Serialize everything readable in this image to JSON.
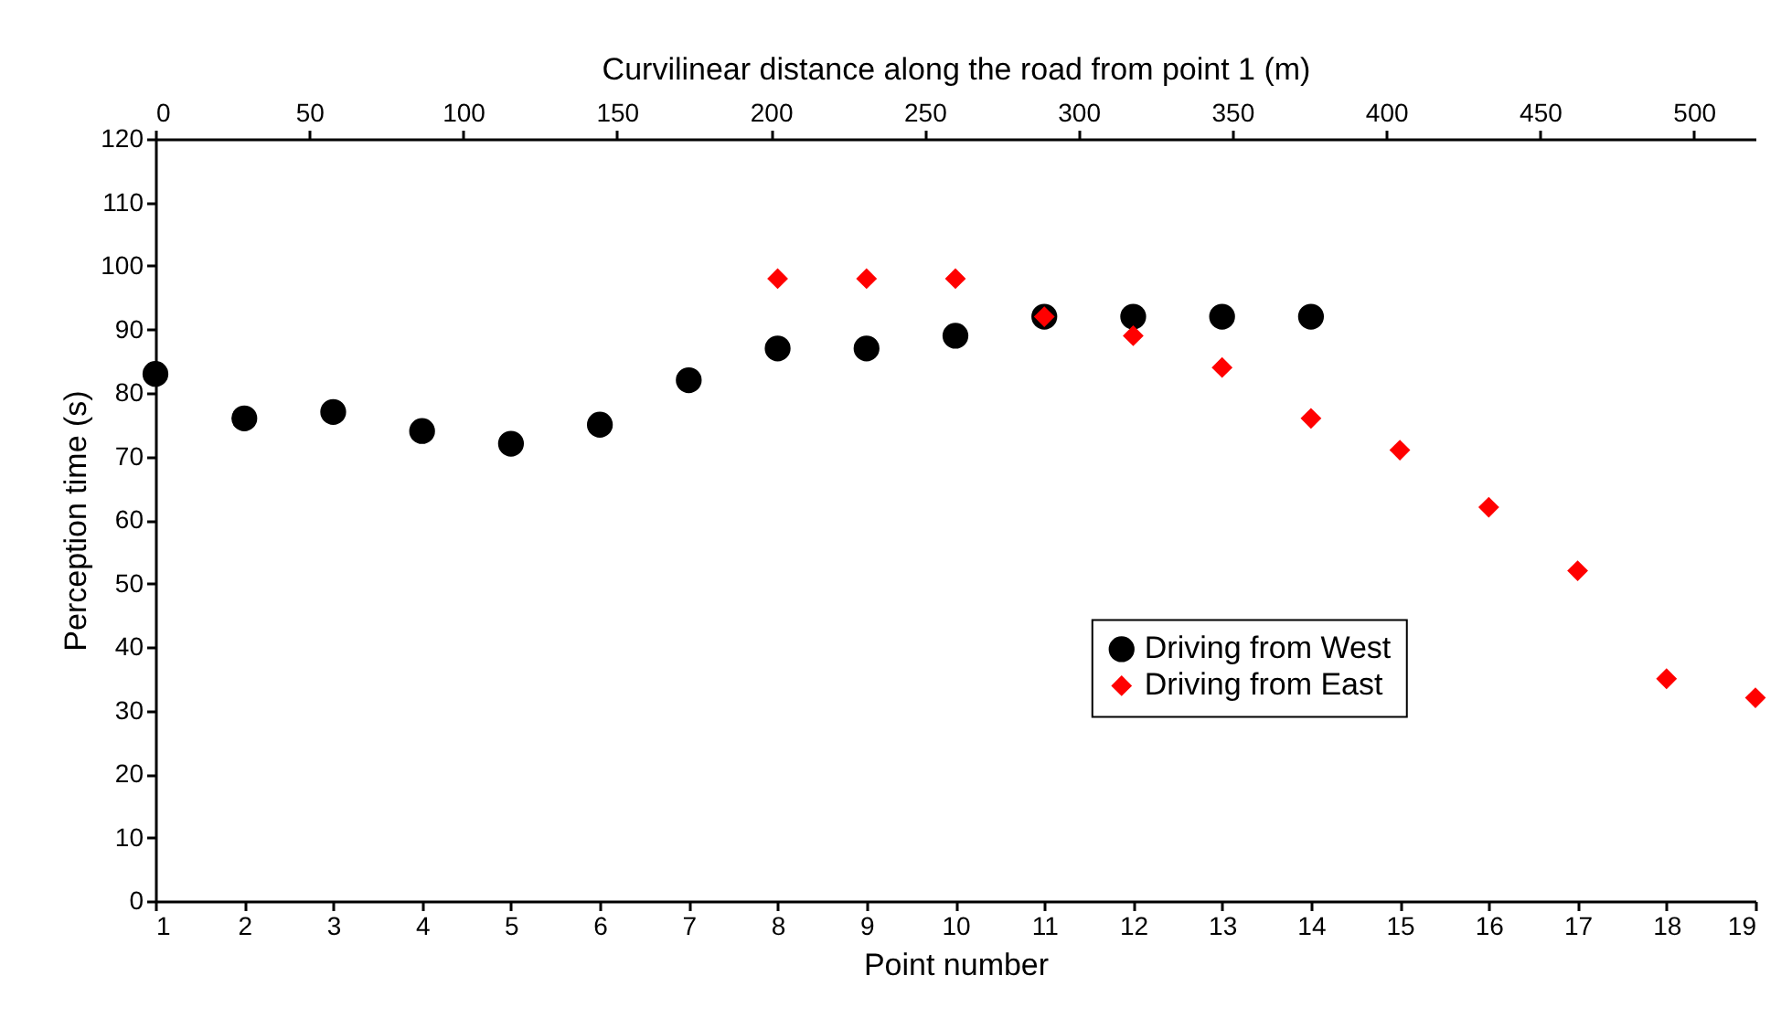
{
  "chart_data": {
    "type": "scatter",
    "xlabel": "Point number",
    "ylabel": "Perception time (s)",
    "x2label": "Curvilinear distance along the road from point 1 (m)",
    "x": [
      1,
      2,
      3,
      4,
      5,
      6,
      7,
      8,
      9,
      10,
      11,
      12,
      13,
      14,
      15,
      16,
      17,
      18,
      19
    ],
    "xlim": [
      1,
      19
    ],
    "xticks": [
      1,
      2,
      3,
      4,
      5,
      6,
      7,
      8,
      9,
      10,
      11,
      12,
      13,
      14,
      15,
      16,
      17,
      18,
      19
    ],
    "x2lim": [
      0,
      520
    ],
    "x2ticks": [
      0,
      50,
      100,
      150,
      200,
      250,
      300,
      350,
      400,
      450,
      500
    ],
    "ylim": [
      0,
      120
    ],
    "yticks": [
      0,
      10,
      20,
      30,
      40,
      50,
      60,
      70,
      80,
      90,
      100,
      110,
      120
    ],
    "series": [
      {
        "name": "Driving from West",
        "color": "#000000",
        "marker": "circle",
        "values": [
          83,
          76,
          77,
          74,
          72,
          75,
          82,
          87,
          87,
          89,
          92,
          92,
          92,
          92,
          null,
          null,
          null,
          null,
          null
        ]
      },
      {
        "name": "Driving from East",
        "color": "#ff0000",
        "marker": "diamond",
        "values": [
          null,
          null,
          null,
          null,
          null,
          null,
          null,
          98,
          98,
          98,
          92,
          89,
          84,
          76,
          71,
          62,
          52,
          35,
          32
        ]
      }
    ],
    "grid": false,
    "legend": "bottom right"
  }
}
